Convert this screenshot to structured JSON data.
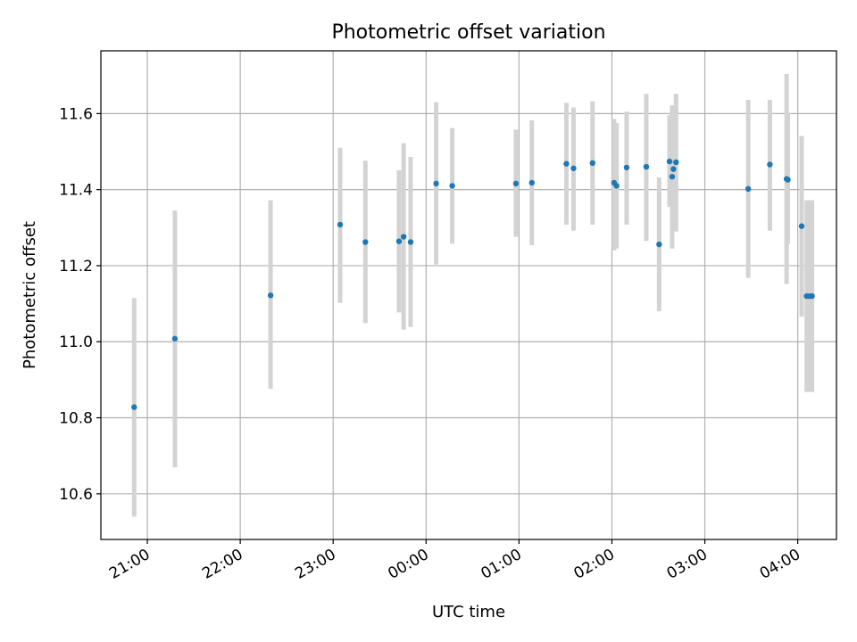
{
  "chart_data": {
    "type": "scatter",
    "title": "Photometric offset variation",
    "xlabel": "UTC time",
    "ylabel": "Photometric offset",
    "x_unit": "minutes",
    "xlim": [
      1230,
      1705
    ],
    "ylim": [
      10.48,
      11.765
    ],
    "x_ticks": [
      {
        "value": 1260,
        "label": "21:00"
      },
      {
        "value": 1320,
        "label": "22:00"
      },
      {
        "value": 1380,
        "label": "23:00"
      },
      {
        "value": 1440,
        "label": "00:00"
      },
      {
        "value": 1500,
        "label": "01:00"
      },
      {
        "value": 1560,
        "label": "02:00"
      },
      {
        "value": 1620,
        "label": "03:00"
      },
      {
        "value": 1680,
        "label": "04:00"
      }
    ],
    "y_ticks": [
      10.6,
      10.8,
      11.0,
      11.2,
      11.4,
      11.6
    ],
    "grid": true,
    "colors": {
      "point": "#1f77b4",
      "errorbar": "#d3d3d3",
      "grid": "#b0b0b0"
    },
    "points": [
      {
        "x": 1251.5,
        "y": 10.828,
        "lo": 10.54,
        "hi": 11.115
      },
      {
        "x": 1277.8,
        "y": 11.008,
        "lo": 10.67,
        "hi": 11.345
      },
      {
        "x": 1339.6,
        "y": 11.122,
        "lo": 10.876,
        "hi": 11.372
      },
      {
        "x": 1384.5,
        "y": 11.308,
        "lo": 11.102,
        "hi": 11.51
      },
      {
        "x": 1400.8,
        "y": 11.262,
        "lo": 11.049,
        "hi": 11.476
      },
      {
        "x": 1422.5,
        "y": 11.264,
        "lo": 11.077,
        "hi": 11.451
      },
      {
        "x": 1425.5,
        "y": 11.276,
        "lo": 11.032,
        "hi": 11.522
      },
      {
        "x": 1430.0,
        "y": 11.262,
        "lo": 11.039,
        "hi": 11.486
      },
      {
        "x": 1446.5,
        "y": 11.416,
        "lo": 11.203,
        "hi": 11.63
      },
      {
        "x": 1456.9,
        "y": 11.41,
        "lo": 11.258,
        "hi": 11.562
      },
      {
        "x": 1498.0,
        "y": 11.416,
        "lo": 11.276,
        "hi": 11.558
      },
      {
        "x": 1508.3,
        "y": 11.418,
        "lo": 11.254,
        "hi": 11.582
      },
      {
        "x": 1530.6,
        "y": 11.468,
        "lo": 11.308,
        "hi": 11.628
      },
      {
        "x": 1535.2,
        "y": 11.456,
        "lo": 11.292,
        "hi": 11.616
      },
      {
        "x": 1547.5,
        "y": 11.47,
        "lo": 11.308,
        "hi": 11.632
      },
      {
        "x": 1561.4,
        "y": 11.418,
        "lo": 11.24,
        "hi": 11.586
      },
      {
        "x": 1563.0,
        "y": 11.41,
        "lo": 11.245,
        "hi": 11.575
      },
      {
        "x": 1569.5,
        "y": 11.458,
        "lo": 11.308,
        "hi": 11.605
      },
      {
        "x": 1582.2,
        "y": 11.46,
        "lo": 11.265,
        "hi": 11.652
      },
      {
        "x": 1590.5,
        "y": 11.256,
        "lo": 11.08,
        "hi": 11.432
      },
      {
        "x": 1597.2,
        "y": 11.474,
        "lo": 11.355,
        "hi": 11.596
      },
      {
        "x": 1598.9,
        "y": 11.434,
        "lo": 11.245,
        "hi": 11.622
      },
      {
        "x": 1599.7,
        "y": 11.454,
        "lo": 11.34,
        "hi": 11.565
      },
      {
        "x": 1601.4,
        "y": 11.472,
        "lo": 11.29,
        "hi": 11.652
      },
      {
        "x": 1648.0,
        "y": 11.402,
        "lo": 11.168,
        "hi": 11.636
      },
      {
        "x": 1662.0,
        "y": 11.466,
        "lo": 11.292,
        "hi": 11.636
      },
      {
        "x": 1672.8,
        "y": 11.428,
        "lo": 11.152,
        "hi": 11.704
      },
      {
        "x": 1673.6,
        "y": 11.426,
        "lo": 11.258,
        "hi": 11.6
      },
      {
        "x": 1682.5,
        "y": 11.304,
        "lo": 11.066,
        "hi": 11.541
      },
      {
        "x": 1685.8,
        "y": 11.12,
        "lo": 10.868,
        "hi": 11.372
      },
      {
        "x": 1687.6,
        "y": 11.12,
        "lo": 10.868,
        "hi": 11.372
      },
      {
        "x": 1689.2,
        "y": 11.12,
        "lo": 10.868,
        "hi": 11.372
      }
    ]
  }
}
